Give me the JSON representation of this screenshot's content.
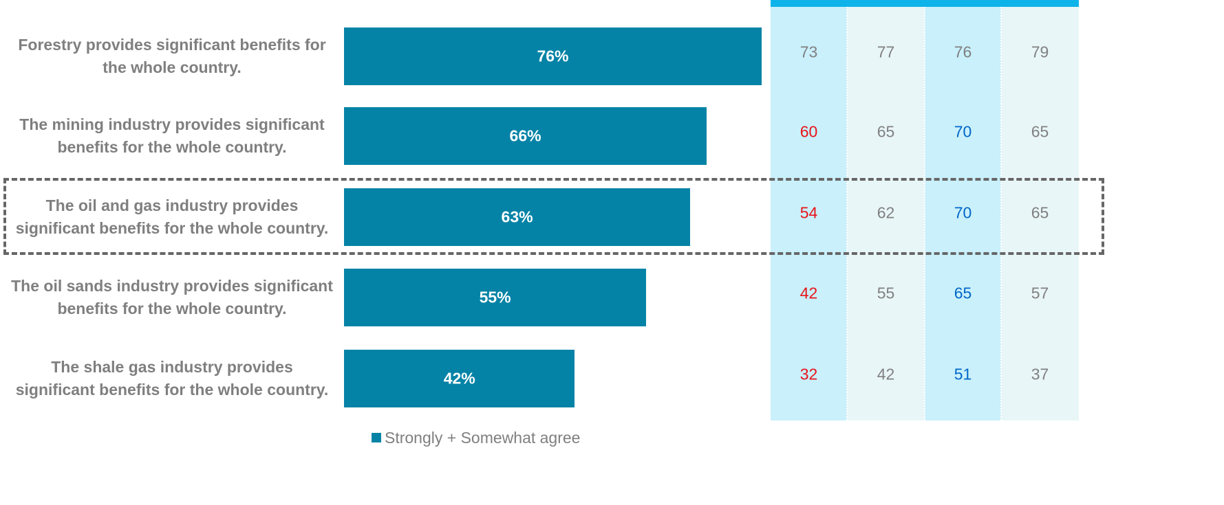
{
  "chart_data": {
    "type": "bar",
    "orientation": "horizontal",
    "categories": [
      "Forestry provides significant benefits for the whole country.",
      "The mining industry provides significant benefits for the whole country.",
      "The oil and gas industry provides significant benefits for the whole country.",
      "The oil sands industry provides significant benefits for the whole country.",
      "The shale gas industry provides significant benefits for the whole country."
    ],
    "series": [
      {
        "name": "Strongly + Somewhat agree",
        "values": [
          76,
          66,
          63,
          55,
          42
        ],
        "color": "#0583a6"
      }
    ],
    "value_labels": [
      "76%",
      "66%",
      "63%",
      "55%",
      "42%"
    ],
    "value_unit": "%",
    "xlim": [
      0,
      100
    ],
    "legend": {
      "position": "bottom",
      "label": "Strongly + Somewhat agree"
    },
    "highlighted_category_index": 2,
    "table": {
      "columns": [
        {
          "shade": "#c9f0fb",
          "values": [
            73,
            60,
            54,
            42,
            32
          ],
          "colors": [
            "#808080",
            "#e8141a",
            "#e8141a",
            "#e8141a",
            "#e8141a"
          ]
        },
        {
          "shade": "#e9f6f8",
          "values": [
            77,
            65,
            62,
            55,
            42
          ],
          "colors": [
            "#808080",
            "#808080",
            "#808080",
            "#808080",
            "#808080"
          ]
        },
        {
          "shade": "#c9f0fb",
          "values": [
            76,
            70,
            70,
            65,
            51
          ],
          "colors": [
            "#808080",
            "#0067c8",
            "#0067c8",
            "#0067c8",
            "#0067c8"
          ]
        },
        {
          "shade": "#e9f6f8",
          "values": [
            79,
            65,
            65,
            57,
            37
          ],
          "colors": [
            "#808080",
            "#808080",
            "#808080",
            "#808080",
            "#808080"
          ]
        }
      ],
      "header_bar_color": "#0eb3ea"
    },
    "colors": {
      "label_text": "#7f7f7f",
      "highlight_border": "#666666"
    }
  }
}
